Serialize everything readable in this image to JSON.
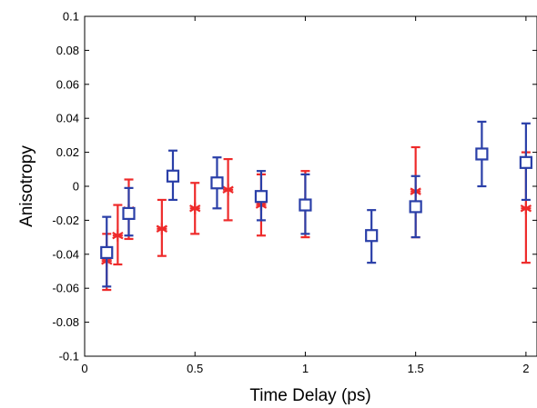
{
  "chart_data": {
    "type": "scatter",
    "title": "",
    "xlabel": "Time Delay (ps)",
    "ylabel": "Anisotropy",
    "xlim": [
      0,
      2.05
    ],
    "ylim": [
      -0.1,
      0.1
    ],
    "grid": false,
    "xticks": [
      0,
      0.5,
      1,
      1.5,
      2
    ],
    "xtick_labels": [
      "0",
      "0.5",
      "1",
      "1.5",
      "2"
    ],
    "yticks": [
      -0.1,
      -0.08,
      -0.06,
      -0.04,
      -0.02,
      0,
      0.02,
      0.04,
      0.06,
      0.08,
      0.1
    ],
    "ytick_labels": [
      "-0.1",
      "-0.08",
      "-0.06",
      "-0.04",
      "-0.02",
      "0",
      "0.02",
      "0.04",
      "0.06",
      "0.08",
      "0.1"
    ],
    "series": [
      {
        "marker": "asterisk",
        "color": "#ee2a2a",
        "points": [
          {
            "x": 0.1,
            "y": -0.044,
            "lo": -0.061,
            "hi": -0.028
          },
          {
            "x": 0.15,
            "y": -0.029,
            "lo": -0.046,
            "hi": -0.011
          },
          {
            "x": 0.2,
            "y": -0.014,
            "lo": -0.031,
            "hi": 0.004
          },
          {
            "x": 0.35,
            "y": -0.025,
            "lo": -0.041,
            "hi": -0.008
          },
          {
            "x": 0.5,
            "y": -0.013,
            "lo": -0.028,
            "hi": 0.002
          },
          {
            "x": 0.65,
            "y": -0.002,
            "lo": -0.02,
            "hi": 0.016
          },
          {
            "x": 0.8,
            "y": -0.011,
            "lo": -0.029,
            "hi": 0.007
          },
          {
            "x": 1.0,
            "y": -0.01,
            "lo": -0.03,
            "hi": 0.009
          },
          {
            "x": 1.5,
            "y": -0.003,
            "lo": -0.03,
            "hi": 0.023
          },
          {
            "x": 2.0,
            "y": -0.013,
            "lo": -0.045,
            "hi": 0.02
          }
        ]
      },
      {
        "marker": "square",
        "color": "#2a3fa8",
        "points": [
          {
            "x": 0.1,
            "y": -0.039,
            "lo": -0.059,
            "hi": -0.018
          },
          {
            "x": 0.2,
            "y": -0.016,
            "lo": -0.029,
            "hi": -0.001
          },
          {
            "x": 0.4,
            "y": 0.006,
            "lo": -0.008,
            "hi": 0.021
          },
          {
            "x": 0.6,
            "y": 0.002,
            "lo": -0.013,
            "hi": 0.017
          },
          {
            "x": 0.8,
            "y": -0.006,
            "lo": -0.02,
            "hi": 0.009
          },
          {
            "x": 1.0,
            "y": -0.011,
            "lo": -0.028,
            "hi": 0.007
          },
          {
            "x": 1.3,
            "y": -0.029,
            "lo": -0.045,
            "hi": -0.014
          },
          {
            "x": 1.5,
            "y": -0.012,
            "lo": -0.03,
            "hi": 0.006
          },
          {
            "x": 1.8,
            "y": 0.019,
            "lo": 0.0,
            "hi": 0.038
          },
          {
            "x": 2.0,
            "y": 0.014,
            "lo": -0.008,
            "hi": 0.037
          }
        ]
      }
    ]
  }
}
